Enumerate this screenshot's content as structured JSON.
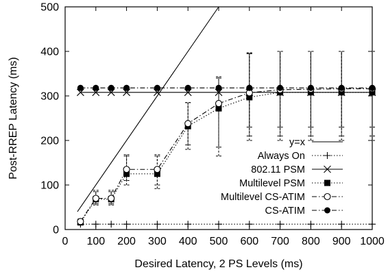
{
  "chart_data": {
    "type": "line",
    "title": "",
    "xlabel": "Desired Latency, 2 PS Levels (ms)",
    "ylabel": "Post-RREP Latency (ms)",
    "xlim": [
      0,
      1000
    ],
    "ylim": [
      0,
      500
    ],
    "xticks": [
      0,
      100,
      200,
      300,
      400,
      500,
      600,
      700,
      800,
      900,
      1000
    ],
    "yticks": [
      0,
      100,
      200,
      300,
      400,
      500
    ],
    "grid": false,
    "legend_position": "bottom-right",
    "x": [
      50,
      100,
      150,
      200,
      300,
      400,
      500,
      600,
      700,
      800,
      900,
      1000
    ],
    "series": [
      {
        "name": "y=x",
        "style": "solid",
        "marker": "none",
        "points": [
          [
            40,
            40
          ],
          [
            500,
            500
          ]
        ]
      },
      {
        "name": "Always On",
        "style": "dotted",
        "marker": "plus",
        "values": [
          12,
          12,
          12,
          12,
          12,
          12,
          12,
          12,
          12,
          12,
          12,
          12
        ]
      },
      {
        "name": "802.11 PSM",
        "style": "solid",
        "marker": "x",
        "values": [
          308,
          308,
          308,
          308,
          308,
          308,
          308,
          308,
          308,
          308,
          308,
          308
        ],
        "errors": [
          null,
          null,
          null,
          null,
          null,
          null,
          null,
          [
            230,
            395
          ],
          [
            230,
            400
          ],
          [
            230,
            400
          ],
          [
            230,
            400
          ],
          [
            230,
            400
          ]
        ]
      },
      {
        "name": "Multilevel PSM",
        "style": "dotted",
        "marker": "filled-square",
        "values": [
          16,
          68,
          68,
          125,
          125,
          232,
          272,
          297,
          308,
          308,
          308,
          308
        ],
        "errors": [
          [
            12,
            22
          ],
          [
            55,
            85
          ],
          [
            55,
            85
          ],
          [
            100,
            165
          ],
          [
            92,
            165
          ],
          [
            180,
            285
          ],
          [
            165,
            340
          ],
          [
            200,
            395
          ],
          [
            200,
            400
          ],
          [
            200,
            400
          ],
          [
            200,
            400
          ],
          [
            200,
            400
          ]
        ]
      },
      {
        "name": "Multilevel CS-ATIM",
        "style": "dashdot",
        "marker": "open-circle",
        "values": [
          18,
          70,
          70,
          135,
          135,
          238,
          283,
          307,
          314,
          315,
          316,
          316
        ],
        "errors": [
          [
            12,
            24
          ],
          [
            58,
            88
          ],
          [
            58,
            88
          ],
          [
            110,
            168
          ],
          [
            100,
            168
          ],
          [
            190,
            285
          ],
          [
            185,
            343
          ],
          [
            210,
            397
          ],
          [
            210,
            400
          ],
          [
            210,
            400
          ],
          [
            210,
            400
          ],
          [
            210,
            400
          ]
        ]
      },
      {
        "name": "CS-ATIM",
        "style": "dashdot",
        "marker": "filled-circle",
        "values": [
          318,
          318,
          318,
          318,
          318,
          318,
          318,
          318,
          318,
          318,
          318,
          318
        ]
      }
    ]
  }
}
